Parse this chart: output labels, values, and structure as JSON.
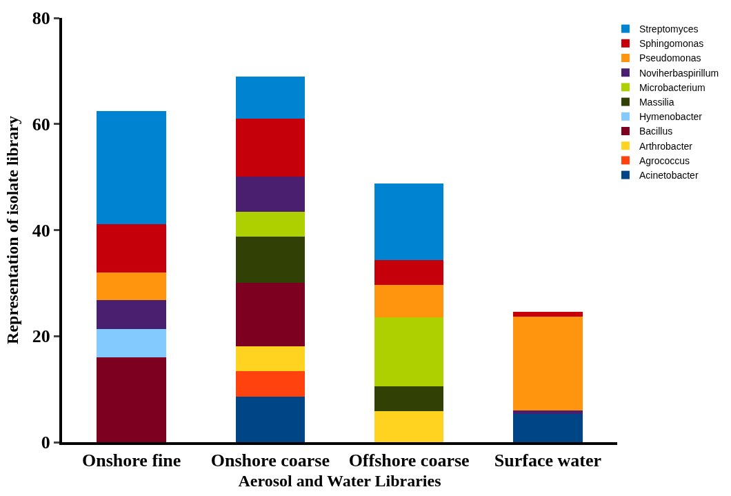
{
  "chart_data": {
    "type": "bar",
    "stacked": true,
    "xlabel": "Aerosol and Water Libraries",
    "ylabel": "Representation of isolate library",
    "categories": [
      "Onshore fine",
      "Onshore coarse",
      "Offshore coarse",
      "Surface water"
    ],
    "ylim": [
      0,
      80
    ],
    "yticks": [
      0,
      20,
      40,
      60,
      80
    ],
    "grid": false,
    "legend": "top right",
    "series": [
      {
        "name": "Acinetobacter",
        "color": "#004586",
        "values": [
          null,
          8.6,
          null,
          5.3
        ]
      },
      {
        "name": "Agrococcus",
        "color": "#ff420e",
        "values": [
          null,
          4.8,
          null,
          null
        ]
      },
      {
        "name": "Arthrobacter",
        "color": "#ffd320",
        "values": [
          null,
          4.7,
          5.8,
          null
        ]
      },
      {
        "name": "Bacillus",
        "color": "#7e0021",
        "values": [
          16,
          11.9,
          null,
          null
        ]
      },
      {
        "name": "Hymenobacter",
        "color": "#83caff",
        "values": [
          5.3,
          null,
          null,
          null
        ]
      },
      {
        "name": "Massilia",
        "color": "#314004",
        "values": [
          null,
          8.8,
          4.7,
          null
        ]
      },
      {
        "name": "Microbacterium",
        "color": "#aecf00",
        "values": [
          null,
          4.7,
          13.1,
          null
        ]
      },
      {
        "name": "Noviherbaspirillum",
        "color": "#4b1f6f",
        "values": [
          5.5,
          6.6,
          null,
          0.7
        ]
      },
      {
        "name": "Pseudomonas",
        "color": "#ff950e",
        "values": [
          5.2,
          null,
          6.1,
          17.7
        ]
      },
      {
        "name": "Sphingomonas",
        "color": "#c5000b",
        "values": [
          9.1,
          10.9,
          4.7,
          0.9
        ]
      },
      {
        "name": "Streptomyces",
        "color": "#0084d1",
        "values": [
          21.4,
          7.9,
          14.4,
          null
        ]
      }
    ]
  }
}
